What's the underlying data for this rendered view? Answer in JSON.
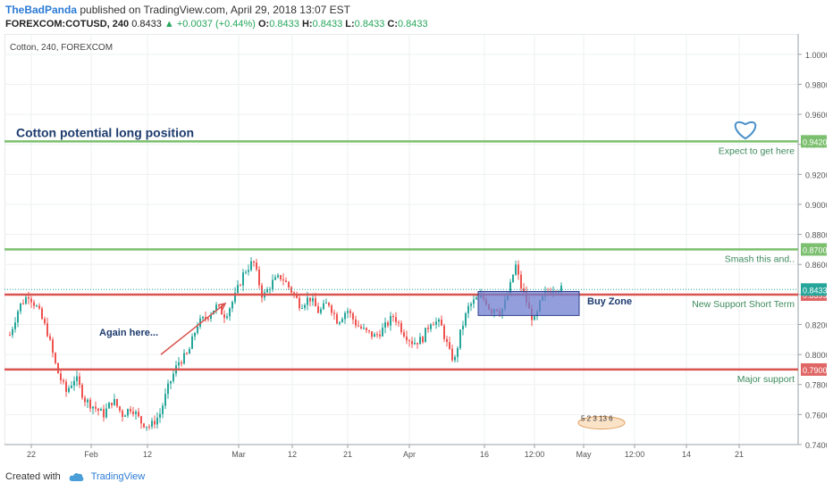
{
  "header": {
    "author": "TheBadPanda",
    "published": " published on TradingView.com, April 29, 2018 13:07 EST",
    "symbol": "FOREXCOM:COTUSD, 240",
    "last": "0.8433",
    "change": "▲ +0.0037 (+0.44%)",
    "o_label": "O:",
    "o": "0.8433",
    "h_label": "H:",
    "h": "0.8433",
    "l_label": "L:",
    "l": "0.8433",
    "c_label": "C:",
    "c": "0.8433"
  },
  "footer": {
    "created_with": "Created with",
    "brand": "TradingView"
  },
  "colors": {
    "up": "#26a69a",
    "down": "#ef5350",
    "green_line": "#7cbf6e",
    "red_line": "#d9534f",
    "buy_zone_fill": "#6f7fd0",
    "buy_zone_stroke": "#30408f",
    "arrow": "#d9534f",
    "heart": "#4a90c8",
    "title_text": "#1d3b6e",
    "price_tag_green": "#7cbf6e",
    "price_tag_red": "#e06666",
    "price_tag_current": "#26a69a"
  },
  "chart_data": {
    "type": "candlestick",
    "instrument_label": "Cotton, 240, FOREXCOM",
    "ylim": [
      0.74,
      1.01
    ],
    "y_ticks": [
      "0.7400",
      "0.7600",
      "0.7800",
      "0.8000",
      "0.8200",
      "0.8400",
      "0.8600",
      "0.8800",
      "0.9000",
      "0.9200",
      "0.9400",
      "0.9600",
      "0.9800",
      "1.0000"
    ],
    "x_ticks": [
      "22",
      "Feb",
      "12",
      "Mar",
      "12",
      "21",
      "Apr",
      "16",
      "12:00",
      "May",
      "12:00",
      "14",
      "21"
    ],
    "close_path_points": [
      [
        0.0,
        0.813
      ],
      [
        0.02,
        0.832
      ],
      [
        0.04,
        0.84
      ],
      [
        0.06,
        0.83
      ],
      [
        0.08,
        0.815
      ],
      [
        0.1,
        0.79
      ],
      [
        0.12,
        0.775
      ],
      [
        0.14,
        0.785
      ],
      [
        0.16,
        0.77
      ],
      [
        0.18,
        0.765
      ],
      [
        0.2,
        0.76
      ],
      [
        0.22,
        0.77
      ],
      [
        0.24,
        0.76
      ],
      [
        0.26,
        0.765
      ],
      [
        0.28,
        0.755
      ],
      [
        0.3,
        0.752
      ],
      [
        0.32,
        0.76
      ],
      [
        0.34,
        0.78
      ],
      [
        0.36,
        0.795
      ],
      [
        0.38,
        0.8
      ],
      [
        0.4,
        0.82
      ],
      [
        0.42,
        0.825
      ],
      [
        0.44,
        0.832
      ],
      [
        0.46,
        0.826
      ],
      [
        0.48,
        0.838
      ],
      [
        0.5,
        0.855
      ],
      [
        0.52,
        0.862
      ],
      [
        0.54,
        0.838
      ],
      [
        0.56,
        0.848
      ],
      [
        0.58,
        0.852
      ],
      [
        0.6,
        0.843
      ],
      [
        0.62,
        0.833
      ],
      [
        0.64,
        0.838
      ],
      [
        0.66,
        0.828
      ],
      [
        0.68,
        0.835
      ],
      [
        0.7,
        0.822
      ],
      [
        0.72,
        0.83
      ],
      [
        0.74,
        0.82
      ],
      [
        0.76,
        0.815
      ],
      [
        0.78,
        0.812
      ],
      [
        0.8,
        0.818
      ],
      [
        0.82,
        0.826
      ],
      [
        0.84,
        0.815
      ],
      [
        0.86,
        0.808
      ],
      [
        0.88,
        0.81
      ],
      [
        0.9,
        0.823
      ],
      [
        0.92,
        0.82
      ],
      [
        0.94,
        0.8
      ],
      [
        0.95,
        0.796
      ],
      [
        0.96,
        0.812
      ],
      [
        0.97,
        0.823
      ],
      [
        0.98,
        0.832
      ],
      [
        1.0,
        0.838
      ]
    ],
    "close_path_points_2": [
      [
        0.0,
        0.838
      ],
      [
        0.06,
        0.836
      ],
      [
        0.12,
        0.829
      ],
      [
        0.18,
        0.832
      ],
      [
        0.24,
        0.828
      ],
      [
        0.3,
        0.835
      ],
      [
        0.36,
        0.846
      ],
      [
        0.42,
        0.86
      ],
      [
        0.48,
        0.846
      ],
      [
        0.54,
        0.838
      ],
      [
        0.6,
        0.827
      ],
      [
        0.66,
        0.822
      ],
      [
        0.72,
        0.834
      ],
      [
        0.78,
        0.84
      ],
      [
        0.84,
        0.843
      ],
      [
        0.9,
        0.845
      ],
      [
        1.0,
        0.843
      ]
    ],
    "levels": [
      {
        "price": 0.942,
        "label": "Expect to get here",
        "tag": "0.9420",
        "kind": "target"
      },
      {
        "price": 0.87,
        "label": "Smash this and..",
        "tag": "0.8700",
        "kind": "resistance"
      },
      {
        "price": 0.8399,
        "label": "New Support Short Term",
        "tag": "0.8399",
        "kind": "support"
      },
      {
        "price": 0.79,
        "label": "Major support",
        "tag": "0.7900",
        "kind": "support"
      }
    ],
    "current_price": {
      "price": 0.8433,
      "tag": "0.8433"
    },
    "buy_zone": {
      "x_from": "Apr 16",
      "x_to": "Apr 27",
      "y_from": 0.826,
      "y_to": 0.842,
      "label": "Buy Zone"
    },
    "annotations": {
      "title": "Cotton potential long position",
      "again_here": "Again here...",
      "events_badge": "5 2 3 13 6"
    }
  }
}
